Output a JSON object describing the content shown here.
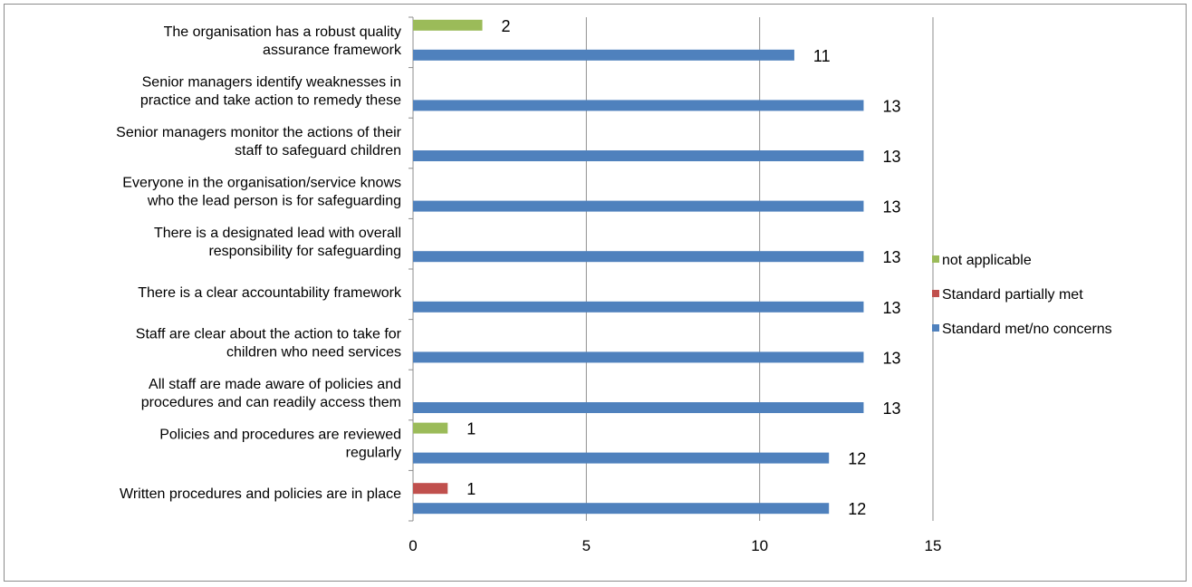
{
  "chart_data": {
    "type": "bar",
    "orientation": "horizontal",
    "categories": [
      [
        "The organisation has a robust quality",
        "assurance framework"
      ],
      [
        "Senior managers identify weaknesses in",
        "practice and take action to remedy these"
      ],
      [
        "Senior managers monitor the actions of their",
        "staff to safeguard children"
      ],
      [
        "Everyone in the organisation/service knows",
        "who the lead person is for safeguarding"
      ],
      [
        "There is a designated lead with overall",
        "responsibility for safeguarding"
      ],
      [
        "There is a clear accountability framework"
      ],
      [
        "Staff are clear about the action to take for",
        "children who need services"
      ],
      [
        "All staff are made aware of policies and",
        "procedures and can readily access them"
      ],
      [
        "Policies and procedures are reviewed",
        "regularly"
      ],
      [
        "Written procedures and policies are in place"
      ]
    ],
    "series": [
      {
        "name": "not applicable",
        "color": "#9bbb59",
        "values": [
          2,
          null,
          null,
          null,
          null,
          null,
          null,
          null,
          1,
          null
        ]
      },
      {
        "name": "Standard partially met",
        "color": "#c0504d",
        "values": [
          null,
          null,
          null,
          null,
          null,
          null,
          null,
          null,
          null,
          1
        ]
      },
      {
        "name": "Standard met/no concerns",
        "color": "#4f81bd",
        "values": [
          11,
          13,
          13,
          13,
          13,
          13,
          13,
          13,
          12,
          12
        ]
      }
    ],
    "xlim": [
      0,
      15
    ],
    "xticks": [
      0,
      5,
      10,
      15
    ],
    "grid": true,
    "legend_position": "right"
  }
}
